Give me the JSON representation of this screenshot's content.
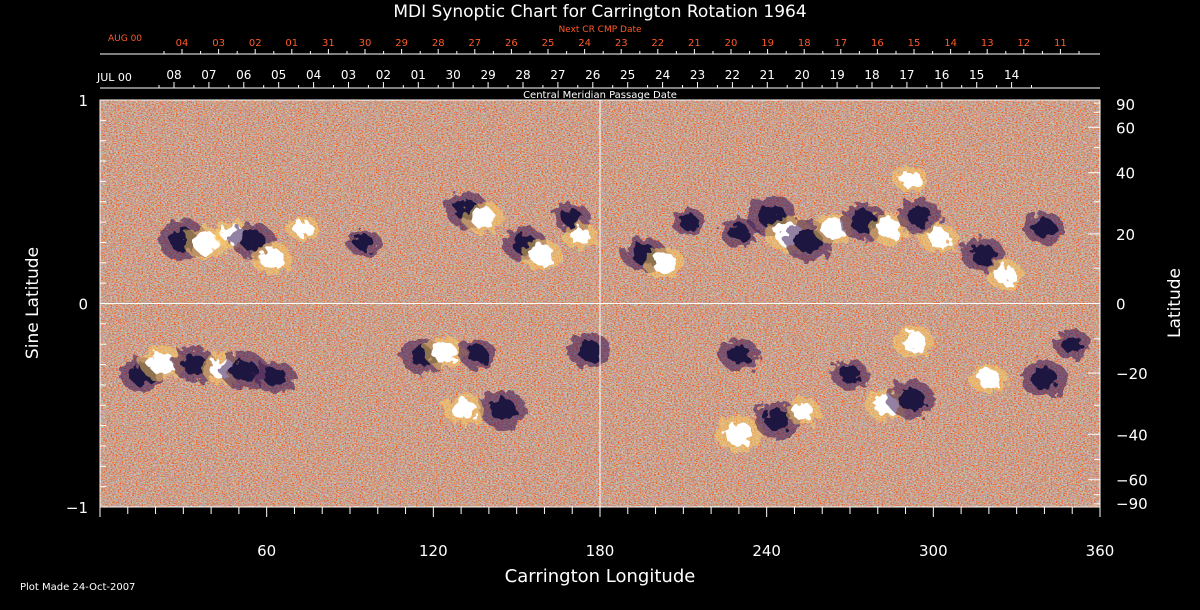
{
  "chart_data": {
    "type": "heatmap",
    "title": "MDI Synoptic Chart for Carrington Rotation 1964",
    "xlabel": "Carrington Longitude",
    "ylabel_left": "Sine Latitude",
    "ylabel_right": "Latitude",
    "xlim": [
      0,
      360
    ],
    "ylim": [
      -1,
      1
    ],
    "x_ticks": [
      60,
      120,
      180,
      240,
      300,
      360
    ],
    "y_ticks_left": [
      {
        "value": 1,
        "label": "1"
      },
      {
        "value": 0,
        "label": "0"
      },
      {
        "value": -1,
        "label": "−1"
      }
    ],
    "y_ticks_right": [
      90,
      60,
      40,
      20,
      0,
      -20,
      -40,
      -60,
      -90
    ],
    "cmp_axis": {
      "label": "Central Meridian Passage Date",
      "month_label": "JUL 00",
      "dates": [
        "08",
        "07",
        "06",
        "05",
        "04",
        "03",
        "02",
        "01",
        "30",
        "29",
        "28",
        "27",
        "26",
        "25",
        "24",
        "23",
        "22",
        "21",
        "20",
        "19",
        "18",
        "17",
        "16",
        "15",
        "14"
      ]
    },
    "next_cr_axis": {
      "label": "Next CR CMP Date",
      "month_label": "AUG 00",
      "dates": [
        "04",
        "03",
        "02",
        "01",
        "31",
        "30",
        "29",
        "28",
        "27",
        "26",
        "25",
        "24",
        "23",
        "22",
        "21",
        "20",
        "19",
        "18",
        "17",
        "16",
        "15",
        "14",
        "13",
        "12",
        "11"
      ]
    },
    "colors": {
      "background": "#000000",
      "base": "#ff5000",
      "positive": "#ffffff",
      "negative": "#1a1440",
      "next_cr_text": "#ff5a28"
    },
    "regions": [
      {
        "lon": 30,
        "sinlat": 0.31,
        "polarity": "negative",
        "strength": 1.0
      },
      {
        "lon": 38,
        "sinlat": 0.3,
        "polarity": "positive",
        "strength": 0.9
      },
      {
        "lon": 48,
        "sinlat": 0.34,
        "polarity": "positive",
        "strength": 0.7
      },
      {
        "lon": 55,
        "sinlat": 0.31,
        "polarity": "negative",
        "strength": 0.8
      },
      {
        "lon": 62,
        "sinlat": 0.22,
        "polarity": "positive",
        "strength": 0.8
      },
      {
        "lon": 73,
        "sinlat": 0.37,
        "polarity": "positive",
        "strength": 0.5
      },
      {
        "lon": 95,
        "sinlat": 0.3,
        "polarity": "negative",
        "strength": 0.5
      },
      {
        "lon": 132,
        "sinlat": 0.46,
        "polarity": "negative",
        "strength": 0.8
      },
      {
        "lon": 138,
        "sinlat": 0.42,
        "polarity": "positive",
        "strength": 0.8
      },
      {
        "lon": 153,
        "sinlat": 0.29,
        "polarity": "negative",
        "strength": 0.8
      },
      {
        "lon": 159,
        "sinlat": 0.24,
        "polarity": "positive",
        "strength": 0.8
      },
      {
        "lon": 170,
        "sinlat": 0.42,
        "polarity": "negative",
        "strength": 0.6
      },
      {
        "lon": 173,
        "sinlat": 0.33,
        "polarity": "positive",
        "strength": 0.6
      },
      {
        "lon": 196,
        "sinlat": 0.24,
        "polarity": "negative",
        "strength": 0.8
      },
      {
        "lon": 203,
        "sinlat": 0.2,
        "polarity": "positive",
        "strength": 0.8
      },
      {
        "lon": 212,
        "sinlat": 0.4,
        "polarity": "negative",
        "strength": 0.5
      },
      {
        "lon": 230,
        "sinlat": 0.35,
        "polarity": "negative",
        "strength": 0.6
      },
      {
        "lon": 242,
        "sinlat": 0.43,
        "polarity": "negative",
        "strength": 1.0
      },
      {
        "lon": 248,
        "sinlat": 0.34,
        "polarity": "positive",
        "strength": 1.0
      },
      {
        "lon": 255,
        "sinlat": 0.31,
        "polarity": "negative",
        "strength": 1.0
      },
      {
        "lon": 264,
        "sinlat": 0.37,
        "polarity": "positive",
        "strength": 0.8
      },
      {
        "lon": 275,
        "sinlat": 0.4,
        "polarity": "negative",
        "strength": 0.9
      },
      {
        "lon": 284,
        "sinlat": 0.37,
        "polarity": "positive",
        "strength": 0.8
      },
      {
        "lon": 295,
        "sinlat": 0.43,
        "polarity": "negative",
        "strength": 0.8
      },
      {
        "lon": 302,
        "sinlat": 0.32,
        "polarity": "positive",
        "strength": 0.7
      },
      {
        "lon": 318,
        "sinlat": 0.24,
        "polarity": "negative",
        "strength": 0.8
      },
      {
        "lon": 326,
        "sinlat": 0.14,
        "polarity": "positive",
        "strength": 0.7
      },
      {
        "lon": 340,
        "sinlat": 0.37,
        "polarity": "negative",
        "strength": 0.7
      },
      {
        "lon": 292,
        "sinlat": 0.61,
        "polarity": "positive",
        "strength": 0.6
      },
      {
        "lon": 15,
        "sinlat": -0.35,
        "polarity": "negative",
        "strength": 0.8
      },
      {
        "lon": 22,
        "sinlat": -0.29,
        "polarity": "positive",
        "strength": 0.9
      },
      {
        "lon": 34,
        "sinlat": -0.3,
        "polarity": "negative",
        "strength": 0.8
      },
      {
        "lon": 44,
        "sinlat": -0.32,
        "polarity": "positive",
        "strength": 0.8
      },
      {
        "lon": 52,
        "sinlat": -0.33,
        "polarity": "negative",
        "strength": 0.9
      },
      {
        "lon": 63,
        "sinlat": -0.36,
        "polarity": "negative",
        "strength": 0.7
      },
      {
        "lon": 116,
        "sinlat": -0.26,
        "polarity": "negative",
        "strength": 0.8
      },
      {
        "lon": 124,
        "sinlat": -0.24,
        "polarity": "positive",
        "strength": 0.8
      },
      {
        "lon": 136,
        "sinlat": -0.25,
        "polarity": "negative",
        "strength": 0.6
      },
      {
        "lon": 145,
        "sinlat": -0.52,
        "polarity": "negative",
        "strength": 0.9
      },
      {
        "lon": 131,
        "sinlat": -0.52,
        "polarity": "positive",
        "strength": 0.8
      },
      {
        "lon": 176,
        "sinlat": -0.23,
        "polarity": "negative",
        "strength": 0.8
      },
      {
        "lon": 230,
        "sinlat": -0.25,
        "polarity": "negative",
        "strength": 0.7
      },
      {
        "lon": 230,
        "sinlat": -0.64,
        "polarity": "positive",
        "strength": 1.0
      },
      {
        "lon": 244,
        "sinlat": -0.57,
        "polarity": "negative",
        "strength": 0.9
      },
      {
        "lon": 253,
        "sinlat": -0.53,
        "polarity": "positive",
        "strength": 0.6
      },
      {
        "lon": 283,
        "sinlat": -0.5,
        "polarity": "positive",
        "strength": 0.8
      },
      {
        "lon": 292,
        "sinlat": -0.47,
        "polarity": "negative",
        "strength": 0.9
      },
      {
        "lon": 293,
        "sinlat": -0.19,
        "polarity": "positive",
        "strength": 0.8
      },
      {
        "lon": 270,
        "sinlat": -0.35,
        "polarity": "negative",
        "strength": 0.6
      },
      {
        "lon": 320,
        "sinlat": -0.37,
        "polarity": "positive",
        "strength": 0.7
      },
      {
        "lon": 340,
        "sinlat": -0.37,
        "polarity": "negative",
        "strength": 0.9
      },
      {
        "lon": 350,
        "sinlat": -0.2,
        "polarity": "negative",
        "strength": 0.6
      }
    ]
  },
  "footer": {
    "plot_made": "Plot Made 24-Oct-2007"
  }
}
